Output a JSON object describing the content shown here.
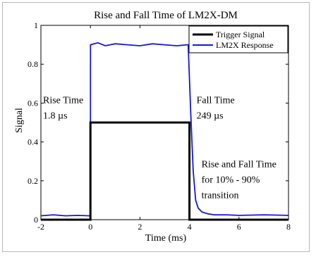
{
  "chart_data": {
    "type": "line",
    "title": "Rise and Fall Time of LM2X-DM",
    "xlabel": "Time (ms)",
    "ylabel": "Signal",
    "xlim": [
      -2,
      8
    ],
    "ylim": [
      0,
      1
    ],
    "xticks": [
      -2,
      0,
      2,
      4,
      6,
      8
    ],
    "yticks": [
      0,
      0.2,
      0.4,
      0.6,
      0.8,
      1
    ],
    "xtick_labels": [
      "-2",
      "0",
      "2",
      "4",
      "6",
      "8"
    ],
    "ytick_labels": [
      "0",
      "0.2",
      "0.4",
      "0.6",
      "0.8",
      "1"
    ],
    "grid": false,
    "legend_position": "top-right",
    "series": [
      {
        "name": "Trigger Signal",
        "color": "#000000",
        "x": [
          -2,
          0,
          0,
          4,
          4,
          8
        ],
        "y": [
          0,
          0,
          0.5,
          0.5,
          0,
          0
        ]
      },
      {
        "name": "LM2X Response",
        "color": "#1414e6",
        "x": [
          -2,
          -1.5,
          -1,
          -0.5,
          -0.05,
          0,
          0.002,
          0.3,
          0.6,
          1.0,
          1.5,
          2.0,
          2.5,
          3.0,
          3.5,
          3.9,
          3.95,
          4.05,
          4.15,
          4.25,
          4.35,
          4.5,
          4.75,
          5.0,
          5.5,
          6.0,
          7.0,
          8.0
        ],
        "y": [
          0.02,
          0.025,
          0.02,
          0.022,
          0.02,
          0.02,
          0.9,
          0.91,
          0.895,
          0.905,
          0.9,
          0.895,
          0.905,
          0.9,
          0.895,
          0.9,
          0.9,
          0.55,
          0.25,
          0.1,
          0.06,
          0.04,
          0.03,
          0.025,
          0.025,
          0.022,
          0.025,
          0.022
        ]
      }
    ],
    "annotations": [
      {
        "text": "Rise Time",
        "x": -2,
        "y": 0.6
      },
      {
        "text": "1.8 µs",
        "x": -2,
        "y": 0.52
      },
      {
        "text": "Fall Time",
        "x": 4.2,
        "y": 0.6
      },
      {
        "text": "249 µs",
        "x": 4.2,
        "y": 0.52
      },
      {
        "text": "Rise and Fall Time",
        "x": 4.4,
        "y": 0.27
      },
      {
        "text": "for 10% - 90%",
        "x": 4.4,
        "y": 0.19
      },
      {
        "text": "transition",
        "x": 4.4,
        "y": 0.11
      }
    ]
  }
}
